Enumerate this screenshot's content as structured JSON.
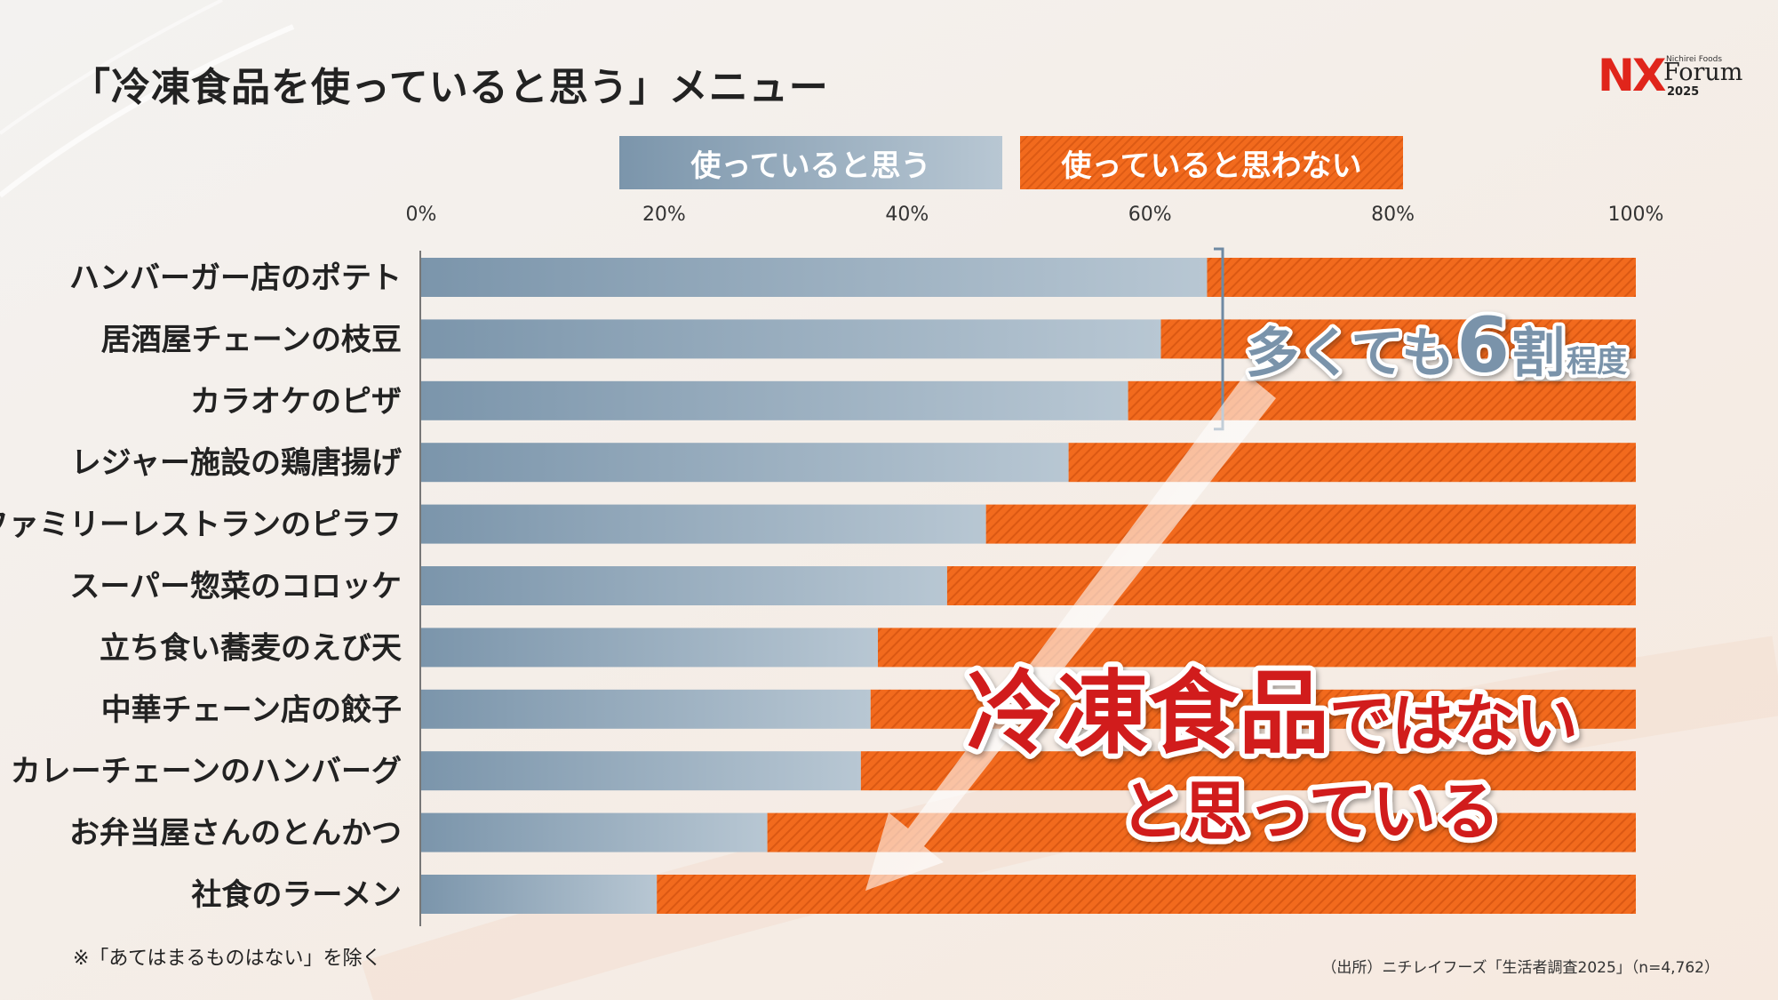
{
  "title": "「冷凍食品を使っていると思う」メニュー",
  "logo": {
    "brand": "NX",
    "sub": "Nichirei Foods",
    "forum": "Forum",
    "year": "2025"
  },
  "legend": {
    "use": "使っていると思う",
    "not_use": "使っていると思わない"
  },
  "colors": {
    "use_start": "#7b95ab",
    "use_end": "#b8c7d3",
    "not_use": "#f26a1d",
    "title_red": "#d11f1a"
  },
  "chart_data": {
    "type": "bar",
    "orientation": "horizontal",
    "stacked": true,
    "categories": [
      "ハンバーガー店のポテト",
      "居酒屋チェーンの枝豆",
      "カラオケのピザ",
      "レジャー施設の鶏唐揚げ",
      "ファミリーレストランのピラフ",
      "スーパー惣菜のコロッケ",
      "立ち食い蕎麦のえび天",
      "中華チェーン店の餃子",
      "カレーチェーンのハンバーグ",
      "お弁当屋さんのとんかつ",
      "社食のラーメン"
    ],
    "series": [
      {
        "name": "使っていると思う",
        "values": [
          64.7,
          60.9,
          58.2,
          53.3,
          46.5,
          43.3,
          37.6,
          37.0,
          36.2,
          28.5,
          19.4
        ]
      },
      {
        "name": "使っていると思わない",
        "values": [
          35.3,
          39.1,
          41.8,
          46.7,
          53.5,
          56.7,
          62.4,
          63.0,
          63.8,
          71.5,
          80.6
        ]
      }
    ],
    "xlim": [
      0,
      100
    ],
    "x_ticks": [
      "0%",
      "20%",
      "40%",
      "60%",
      "80%",
      "100%"
    ],
    "x_tick_values": [
      0,
      20,
      40,
      60,
      80,
      100
    ]
  },
  "annotations": {
    "bracket_main": "多くても",
    "bracket_num": "6",
    "bracket_wari": "割",
    "bracket_suffix": "程度",
    "big_line1_main": "冷凍食品",
    "big_line1_suffix": "ではない",
    "big_line2": "と思っている"
  },
  "footnote": "※「あてはまるものはない」を除く",
  "source": "（出所）ニチレイフーズ「生活者調査2025」（n=4,762）"
}
